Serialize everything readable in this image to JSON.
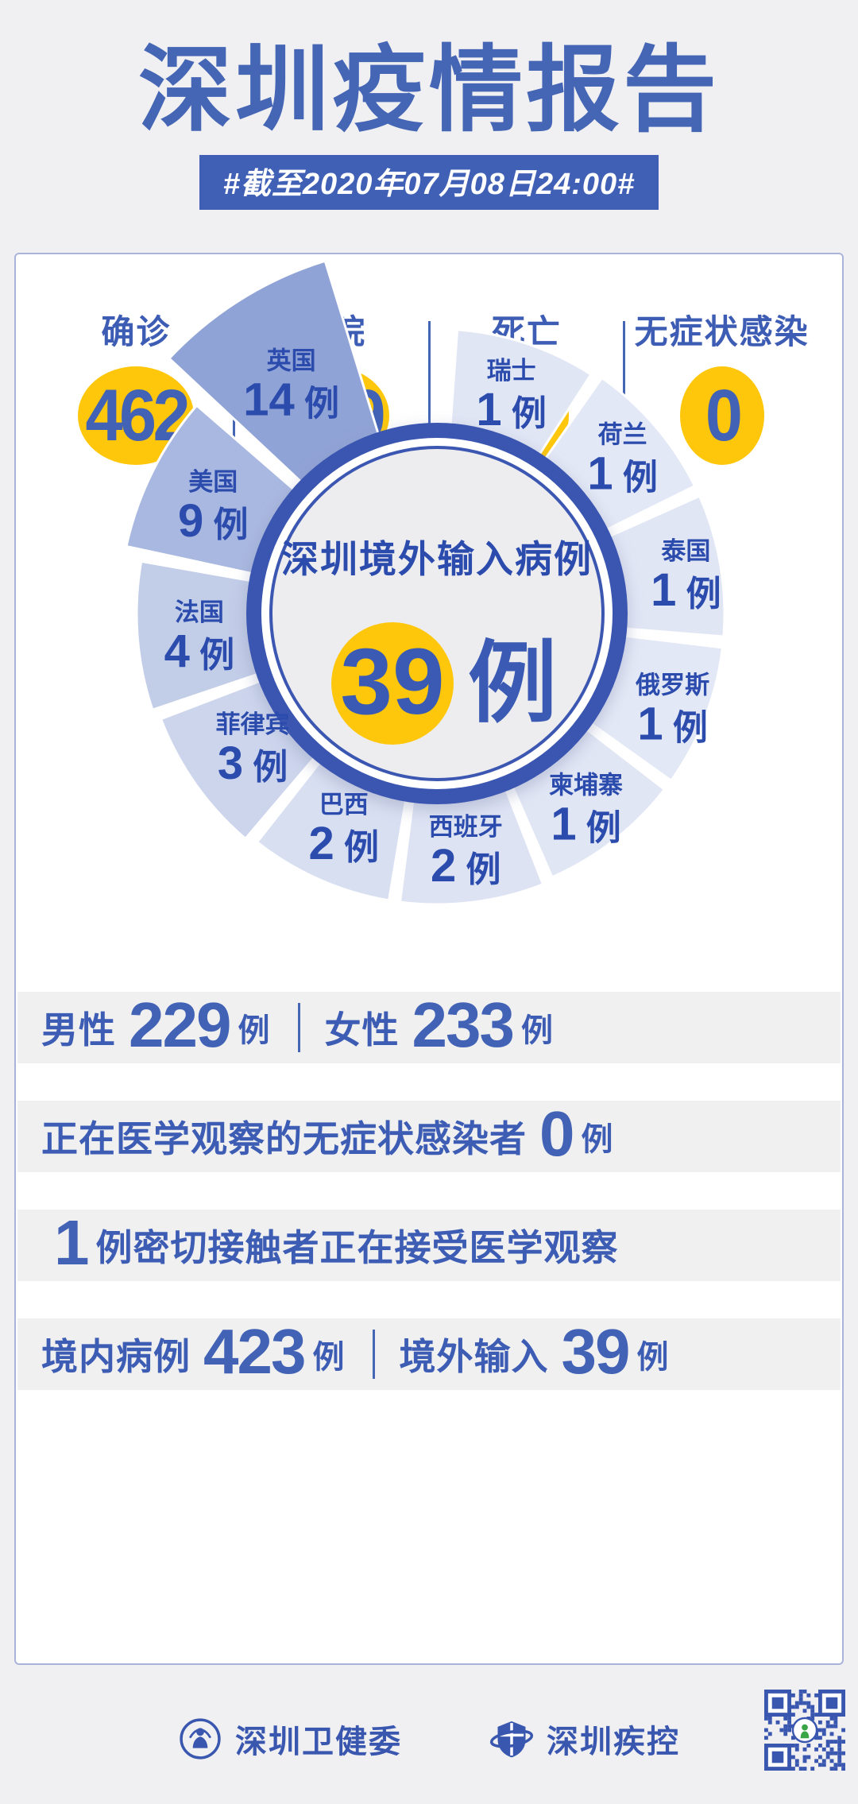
{
  "page": {
    "title": "深圳疫情报告",
    "date_badge": "#截至2020年07月08日24:00#"
  },
  "summary_stats": [
    {
      "label": "确诊",
      "value": "462"
    },
    {
      "label": "出院",
      "value": "459"
    },
    {
      "label": "死亡",
      "value": "3"
    },
    {
      "label": "无症状感染",
      "value": "0"
    }
  ],
  "chart_data": {
    "type": "pie",
    "variant": "rose-donut",
    "title": "深圳境外输入病例",
    "total": "39",
    "unit": "例",
    "legend_position": "on-slice",
    "slices": [
      {
        "name": "瑞士",
        "value": 1,
        "color": "#e1e6f5",
        "start": 3,
        "end": 33.9,
        "outer_r": 358,
        "label_r": 296,
        "explode": 0
      },
      {
        "name": "荷兰",
        "value": 1,
        "color": "#e3e8f6",
        "start": 33.9,
        "end": 64.8,
        "outer_r": 362,
        "label_r": 308,
        "explode": 0
      },
      {
        "name": "泰国",
        "value": 1,
        "color": "#e1e6f5",
        "start": 64.8,
        "end": 95.7,
        "outer_r": 362,
        "label_r": 318,
        "explode": 0
      },
      {
        "name": "俄罗斯",
        "value": 1,
        "color": "#e3e8f6",
        "start": 95.7,
        "end": 126.6,
        "outer_r": 362,
        "label_r": 318,
        "explode": 0
      },
      {
        "name": "柬埔寨",
        "value": 1,
        "color": "#e1e6f5",
        "start": 126.6,
        "end": 157.5,
        "outer_r": 362,
        "label_r": 305,
        "explode": 0
      },
      {
        "name": "西班牙",
        "value": 2,
        "color": "#dde3f3",
        "start": 157.5,
        "end": 188.4,
        "outer_r": 366,
        "label_r": 295,
        "explode": 0
      },
      {
        "name": "巴西",
        "value": 2,
        "color": "#d8dff1",
        "start": 188.4,
        "end": 219.3,
        "outer_r": 366,
        "label_r": 290,
        "explode": 0
      },
      {
        "name": "菲律宾",
        "value": 3,
        "color": "#ccd5ec",
        "start": 219.3,
        "end": 250.2,
        "outer_r": 372,
        "label_r": 284,
        "explode": 0
      },
      {
        "name": "法国",
        "value": 4,
        "color": "#c2cde8",
        "start": 250.2,
        "end": 281.1,
        "outer_r": 378,
        "label_r": 300,
        "explode": 0
      },
      {
        "name": "美国",
        "value": 9,
        "color": "#a9b8e0",
        "start": 281.1,
        "end": 312,
        "outer_r": 400,
        "label_r": 315,
        "explode": 0
      },
      {
        "name": "英国",
        "value": 14,
        "color": "#90a3d6",
        "start": 312,
        "end": 344,
        "outer_r": 450,
        "label_r": 330,
        "explode": 16
      }
    ]
  },
  "detail_rows": [
    {
      "segments": [
        {
          "kind": "label",
          "text": "男性"
        },
        {
          "kind": "num",
          "text": "229"
        },
        {
          "kind": "unit",
          "text": "例"
        },
        {
          "kind": "sep"
        },
        {
          "kind": "label",
          "text": "女性"
        },
        {
          "kind": "num",
          "text": "233"
        },
        {
          "kind": "unit",
          "text": "例"
        }
      ]
    },
    {
      "segments": [
        {
          "kind": "label",
          "text": "正在医学观察的无症状感染者"
        },
        {
          "kind": "num",
          "text": "0"
        },
        {
          "kind": "unit",
          "text": "例"
        }
      ]
    },
    {
      "segments": [
        {
          "kind": "num",
          "text": "1"
        },
        {
          "kind": "label",
          "text": "例密切接触者正在接受医学观察"
        }
      ]
    },
    {
      "segments": [
        {
          "kind": "label",
          "text": "境内病例"
        },
        {
          "kind": "num",
          "text": "423"
        },
        {
          "kind": "unit",
          "text": "例"
        },
        {
          "kind": "sep"
        },
        {
          "kind": "label",
          "text": "境外输入"
        },
        {
          "kind": "num",
          "text": "39"
        },
        {
          "kind": "unit",
          "text": "例"
        }
      ]
    }
  ],
  "footer": {
    "orgs": [
      {
        "name": "深圳卫健委",
        "icon": "health-commission-emblem-icon"
      },
      {
        "name": "深圳疾控",
        "icon": "cdc-shield-icon"
      }
    ],
    "qr": "qr-code"
  },
  "colors": {
    "primary_blue": "#3d5cb4",
    "deep_blue": "#2b4bad",
    "ring_blue": "#3b57b1",
    "yellow": "#fec70b",
    "chart_inner": "#ededf0",
    "card_border": "#aab4d8",
    "page_bg": "#f0f0f2",
    "bar_bg": "#f0f0f1"
  }
}
